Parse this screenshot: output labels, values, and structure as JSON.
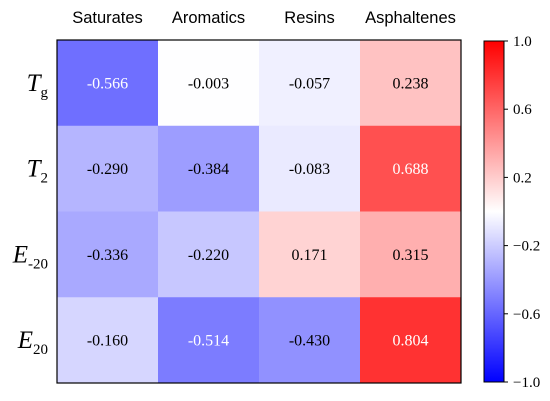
{
  "chart_data": {
    "type": "heatmap",
    "columns": [
      "Saturates",
      "Aromatics",
      "Resins",
      "Asphaltenes"
    ],
    "rows": [
      {
        "main": "T",
        "sub": "g"
      },
      {
        "main": "T",
        "sub": "2"
      },
      {
        "main": "E",
        "sub": "-20"
      },
      {
        "main": "E",
        "sub": "20"
      }
    ],
    "values": [
      [
        -0.566,
        -0.003,
        -0.057,
        0.238
      ],
      [
        -0.29,
        -0.384,
        -0.083,
        0.688
      ],
      [
        -0.336,
        -0.22,
        0.171,
        0.315
      ],
      [
        -0.16,
        -0.514,
        -0.43,
        0.804
      ]
    ],
    "value_labels": [
      [
        "-0.566",
        "-0.003",
        "-0.057",
        "0.238"
      ],
      [
        "-0.290",
        "-0.384",
        "-0.083",
        "0.688"
      ],
      [
        "-0.336",
        "-0.220",
        "0.171",
        "0.315"
      ],
      [
        "-0.160",
        "-0.514",
        "-0.430",
        "0.804"
      ]
    ],
    "colorbar": {
      "range": [
        -1.0,
        1.0
      ],
      "ticks": [
        1.0,
        0.6,
        0.2,
        -0.2,
        -0.6,
        -1.0
      ],
      "tick_labels": [
        "1.0",
        "0.6",
        "0.2",
        "−0.2",
        "−0.6",
        "−1.0"
      ],
      "colormap": "bwr",
      "low_color": "#0000ff",
      "mid_color": "#ffffff",
      "high_color": "#ff0000"
    },
    "xlabel": "",
    "ylabel": "",
    "title": ""
  }
}
